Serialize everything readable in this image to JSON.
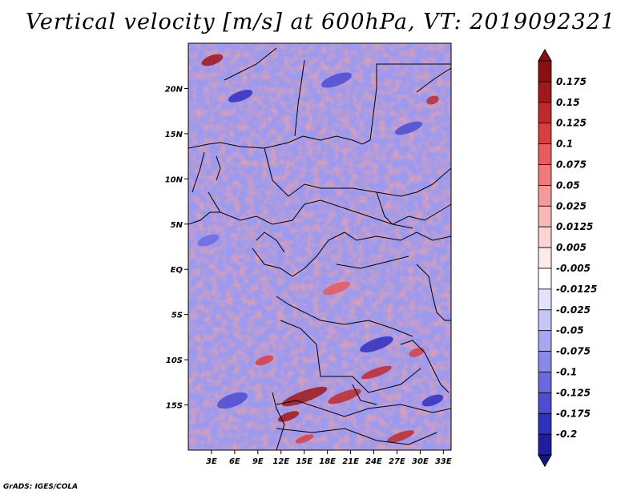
{
  "title": "Vertical velocity [m/s] at 600hPa, VT: 2019092321",
  "credit": "GrADS: IGES/COLA",
  "map": {
    "lon_range": [
      0,
      34
    ],
    "lat_range": [
      -20,
      25
    ],
    "lat_ticks": [
      {
        "value": 20,
        "label": "20N"
      },
      {
        "value": 15,
        "label": "15N"
      },
      {
        "value": 10,
        "label": "10N"
      },
      {
        "value": 5,
        "label": "5N"
      },
      {
        "value": 0,
        "label": "EQ"
      },
      {
        "value": -5,
        "label": "5S"
      },
      {
        "value": -10,
        "label": "10S"
      },
      {
        "value": -15,
        "label": "15S"
      }
    ],
    "lon_ticks": [
      {
        "value": 3,
        "label": "3E"
      },
      {
        "value": 6,
        "label": "6E"
      },
      {
        "value": 9,
        "label": "9E"
      },
      {
        "value": 12,
        "label": "12E"
      },
      {
        "value": 15,
        "label": "15E"
      },
      {
        "value": 18,
        "label": "18E"
      },
      {
        "value": 21,
        "label": "21E"
      },
      {
        "value": 24,
        "label": "24E"
      },
      {
        "value": 27,
        "label": "27E"
      },
      {
        "value": 30,
        "label": "30E"
      },
      {
        "value": 33,
        "label": "33E"
      }
    ]
  },
  "colorbar": {
    "entries": [
      {
        "label": "0.175",
        "color": "#a01818"
      },
      {
        "label": "0.15",
        "color": "#c02a2a"
      },
      {
        "label": "0.125",
        "color": "#d84040"
      },
      {
        "label": "0.1",
        "color": "#e85c5c"
      },
      {
        "label": "0.075",
        "color": "#f07a7a"
      },
      {
        "label": "0.05",
        "color": "#f49a9a"
      },
      {
        "label": "0.025",
        "color": "#f8b8b8"
      },
      {
        "label": "0.0125",
        "color": "#fbd4d4"
      },
      {
        "label": "0.005",
        "color": "#fdeaea"
      },
      {
        "label": "-0.005",
        "color": "#ffffff"
      },
      {
        "label": "-0.0125",
        "color": "#e2e2fc"
      },
      {
        "label": "-0.025",
        "color": "#c6c6f8"
      },
      {
        "label": "-0.05",
        "color": "#a8a8f2"
      },
      {
        "label": "-0.075",
        "color": "#8888ea"
      },
      {
        "label": "-0.1",
        "color": "#6a6ae0"
      },
      {
        "label": "-0.125",
        "color": "#4c4cd4"
      },
      {
        "label": "-0.175",
        "color": "#3030c0"
      },
      {
        "label": "-0.2",
        "color": "#1e1ea0"
      }
    ],
    "top_color": "#8c1010",
    "bottom_color": "#141488"
  }
}
